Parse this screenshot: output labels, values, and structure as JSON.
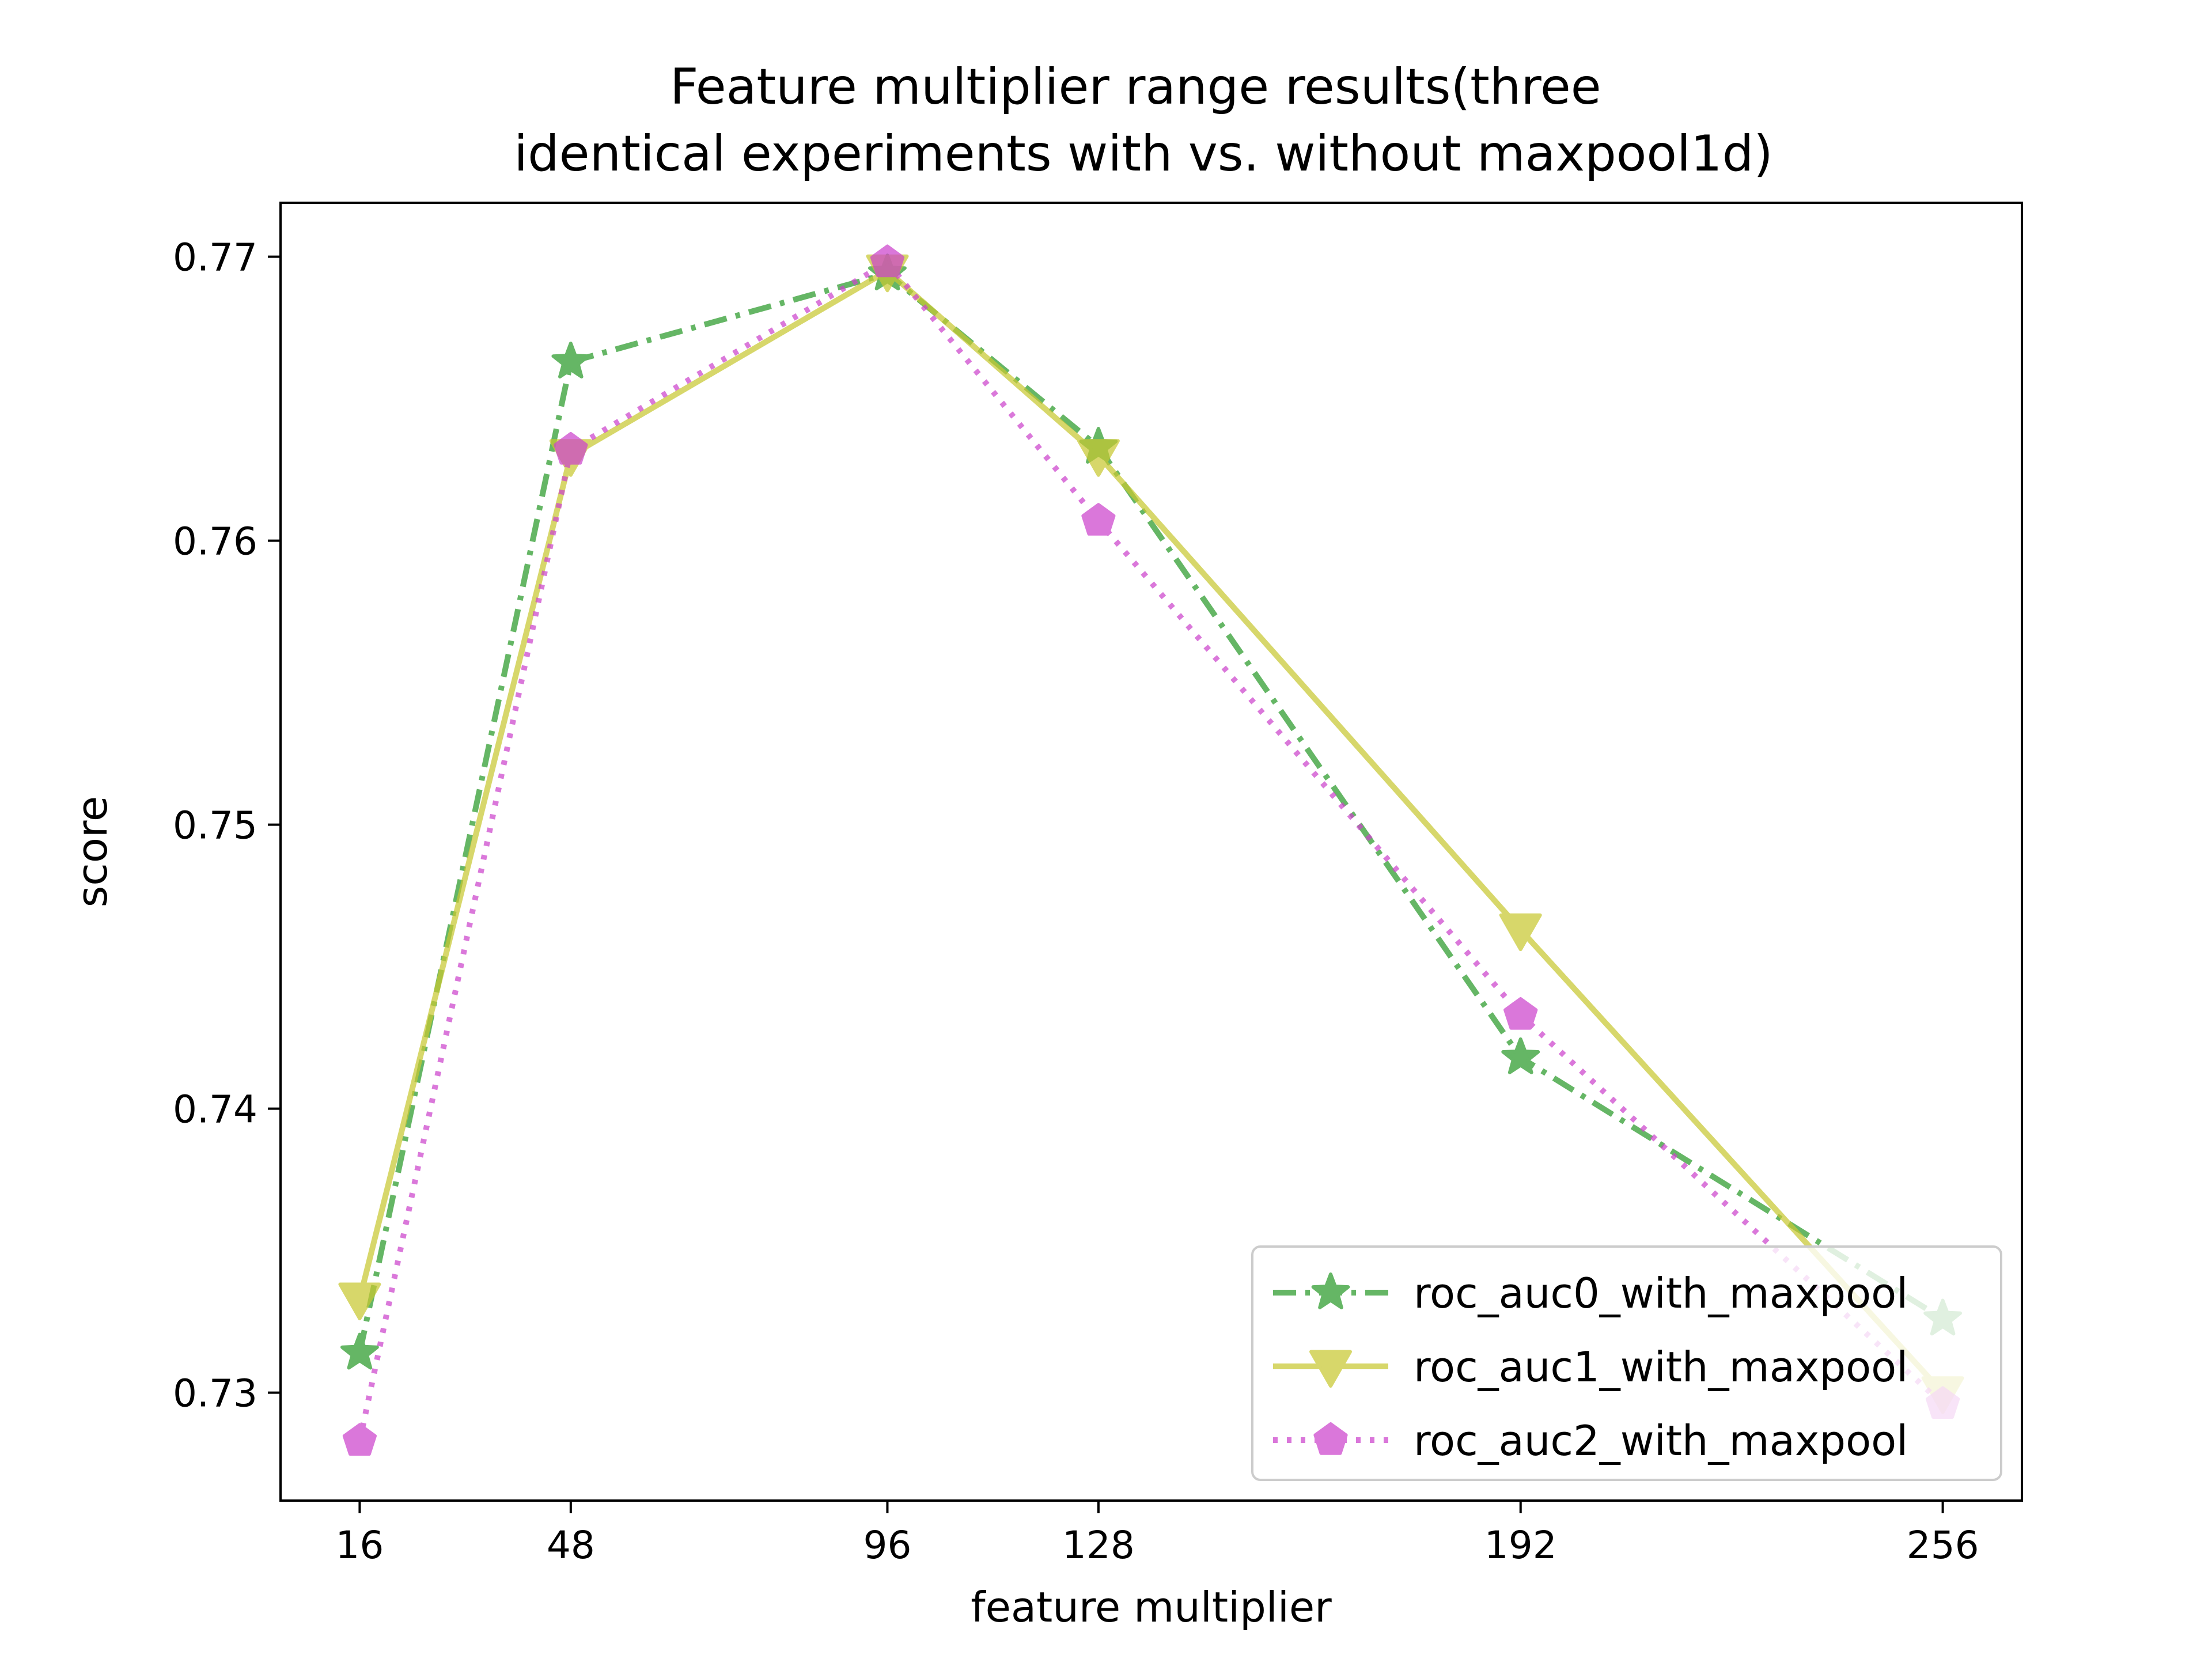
{
  "chart_data": {
    "type": "line",
    "title": "Feature multiplier range results(three\nidentical experiments with vs. without maxpool1d)",
    "xlabel": "feature multiplier",
    "ylabel": "score",
    "x": [
      16,
      48,
      96,
      128,
      192,
      256
    ],
    "x_ticks": [
      "16",
      "48",
      "96",
      "128",
      "192",
      "256"
    ],
    "xlim": [
      4,
      268
    ],
    "ylim": [
      0.7262,
      0.7719
    ],
    "y_ticks": [
      0.73,
      0.74,
      0.75,
      0.76,
      0.77
    ],
    "y_tick_labels": [
      "0.73",
      "0.74",
      "0.75",
      "0.76",
      "0.77"
    ],
    "grid": false,
    "legend_position": "lower-right",
    "series": [
      {
        "name": "roc_auc0_with_maxpool",
        "values": [
          0.7314,
          0.7663,
          0.7694,
          0.7633,
          0.7418,
          0.7326
        ],
        "color": "#2a9a2a",
        "linestyle": "dashdot",
        "marker": "star"
      },
      {
        "name": "roc_auc1_with_maxpool",
        "values": [
          0.7333,
          0.763,
          0.7695,
          0.763,
          0.7463,
          0.73
        ],
        "color": "#c8c832",
        "linestyle": "solid",
        "marker": "triangle-down"
      },
      {
        "name": "roc_auc2_with_maxpool",
        "values": [
          0.7283,
          0.7632,
          0.7698,
          0.7607,
          0.7433,
          0.7296
        ],
        "color": "#cc44cc",
        "linestyle": "dotted",
        "marker": "pentagon"
      }
    ]
  }
}
